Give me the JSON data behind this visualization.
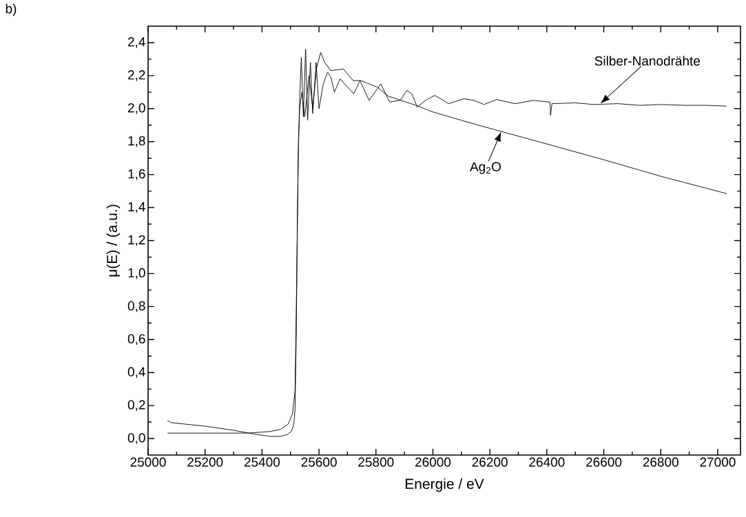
{
  "chart_data": {
    "type": "line",
    "xlabel": "Energie / eV",
    "ylabel": "μ(E) / (a.u.)",
    "xlim": [
      25000,
      27080
    ],
    "ylim": [
      -0.1,
      2.5
    ],
    "xticks": [
      25000,
      25200,
      25400,
      25600,
      25800,
      26000,
      26200,
      26400,
      26600,
      26800,
      27000
    ],
    "yticks": [
      {
        "value": 0,
        "label": "0,0"
      },
      {
        "value": 0.2,
        "label": "0,2"
      },
      {
        "value": 0.4,
        "label": "0,4"
      },
      {
        "value": 0.6,
        "label": "0,6"
      },
      {
        "value": 0.8,
        "label": "0,8"
      },
      {
        "value": 1.0,
        "label": "1,0"
      },
      {
        "value": 1.2,
        "label": "1,2"
      },
      {
        "value": 1.4,
        "label": "1,4"
      },
      {
        "value": 1.6,
        "label": "1,6"
      },
      {
        "value": 1.8,
        "label": "1,8"
      },
      {
        "value": 2.0,
        "label": "2,0"
      },
      {
        "value": 2.2,
        "label": "2,2"
      },
      {
        "value": 2.4,
        "label": "2,4"
      }
    ],
    "grid": false,
    "series": [
      {
        "color": "#000000",
        "x": [
          25068,
          25082,
          25200,
          25300,
          25380,
          25431,
          25465,
          25490,
          25504,
          25512,
          25516,
          25520,
          25524,
          25528,
          25532,
          25540,
          25550,
          25565,
          25578,
          25592,
          25606,
          25620,
          25642,
          25686,
          25720,
          25747,
          25805,
          25844,
          25941,
          25999,
          26159,
          26370,
          26600,
          26800,
          27031
        ],
        "values": [
          0.109,
          0.096,
          0.075,
          0.05,
          0.025,
          0.013,
          0.013,
          0.025,
          0.046,
          0.09,
          0.18,
          0.6,
          1.3,
          1.8,
          2.0,
          2.1,
          1.95,
          2.2,
          2.0,
          2.25,
          2.34,
          2.28,
          2.23,
          2.24,
          2.17,
          2.17,
          2.13,
          2.075,
          2.02,
          1.98,
          1.9,
          1.8,
          1.69,
          1.59,
          1.485
        ]
      },
      {
        "color": "#000000",
        "x": [
          25068,
          25200,
          25352,
          25424,
          25465,
          25492,
          25507,
          25516,
          25522,
          25527,
          25532,
          25538,
          25545,
          25553,
          25560,
          25570,
          25578,
          25590,
          25600,
          25615,
          25630,
          25642,
          25654,
          25674,
          25722,
          25744,
          25776,
          25817,
          25848,
          25885,
          25909,
          25926,
          25945,
          25974,
          26006,
          26037,
          26054,
          26110,
          26144,
          26180,
          26224,
          26289,
          26353,
          26405,
          26411,
          26413,
          26418,
          26500,
          26564,
          26650,
          26726,
          26800,
          26886,
          26960,
          27031
        ],
        "values": [
          0.033,
          0.033,
          0.033,
          0.042,
          0.055,
          0.088,
          0.15,
          0.29,
          1.0,
          1.7,
          2.05,
          2.31,
          1.95,
          2.36,
          1.93,
          2.28,
          1.97,
          2.28,
          2.0,
          2.15,
          2.22,
          2.19,
          2.1,
          2.18,
          2.09,
          2.17,
          2.05,
          2.15,
          2.04,
          2.05,
          2.11,
          2.09,
          2.01,
          2.05,
          2.08,
          2.05,
          2.03,
          2.06,
          2.05,
          2.025,
          2.055,
          2.03,
          2.05,
          2.04,
          2.04,
          1.96,
          2.03,
          2.035,
          2.025,
          2.03,
          2.02,
          2.025,
          2.02,
          2.02,
          2.015
        ]
      }
    ],
    "annotations": [
      "b)",
      {
        "text": "Silber-Nanodrähte",
        "x": 26588,
        "y": 2.03
      },
      {
        "text": "Ag$_{2}$O",
        "x": 26240,
        "y": 1.86
      }
    ]
  }
}
